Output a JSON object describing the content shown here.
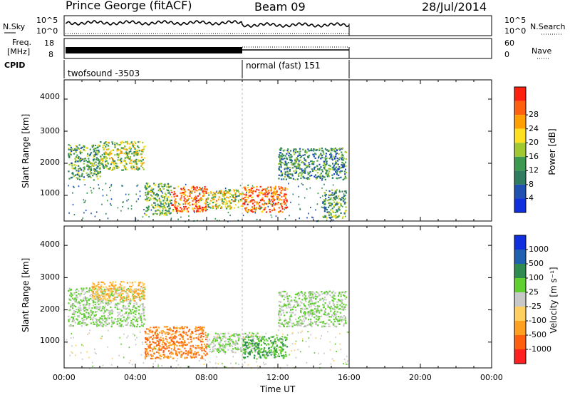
{
  "header": {
    "station": "Prince George (fitACF)",
    "beam": "Beam 09",
    "date": "28/Jul/2014"
  },
  "panels": {
    "nsky": {
      "label": "N.Sky",
      "tick_hi": "10^5",
      "tick_lo": "10^0",
      "right_label": "N.Search",
      "right_tick_hi": "10^5",
      "right_tick_lo": "10^0"
    },
    "freq": {
      "label_line1": "Freq.",
      "label_line2": "[MHz]",
      "tick_hi": "18",
      "tick_lo": "8",
      "right_label": "Nave",
      "right_tick_hi": "60",
      "right_tick_lo": "0"
    },
    "cpid": {
      "label": "CPID",
      "segments": [
        "twofsound -3503",
        "normal (fast) 151"
      ]
    }
  },
  "power_panel": {
    "ylabel": "Slant Range [km]",
    "yticks": [
      "1000",
      "2000",
      "3000",
      "4000"
    ],
    "colorbar_label": "Power [dB]",
    "colorbar_ticks": [
      "4",
      "8",
      "12",
      "16",
      "20",
      "24",
      "28"
    ],
    "colors": [
      "#1030e0",
      "#2050b0",
      "#2e7d60",
      "#3c9a50",
      "#a0c830",
      "#ffe020",
      "#ffa000",
      "#ff6010",
      "#ff2010"
    ]
  },
  "velocity_panel": {
    "ylabel": "Slant Range [km]",
    "yticks": [
      "1000",
      "2000",
      "3000",
      "4000"
    ],
    "colorbar_label": "Velocity [m s⁻¹]",
    "colorbar_ticks": [
      "1000",
      "500",
      "100",
      "25",
      "-25",
      "-100",
      "-500",
      "-1000"
    ],
    "colors": [
      "#1030e0",
      "#2060b0",
      "#2e8c50",
      "#60d030",
      "#c8c8c8",
      "#ffd060",
      "#ffa020",
      "#ff6010",
      "#ff2020"
    ]
  },
  "x_axis": {
    "label": "Time UT",
    "ticks": [
      "00:00",
      "04:00",
      "08:00",
      "12:00",
      "16:00",
      "20:00",
      "00:00"
    ]
  },
  "chart_data": {
    "type": "heatmap",
    "title": "Prince George (fitACF)",
    "xlabel": "Time UT",
    "ylabel": "Slant Range [km]",
    "xlim_hours": [
      0,
      24
    ],
    "ylim_km": [
      200,
      4600
    ],
    "data_end_hour": 16,
    "mode_change_hour": 10,
    "grid": false,
    "power_scatter_regions": [
      {
        "t0": 0.2,
        "t1": 2.0,
        "r0": 1500,
        "r1": 2600,
        "level": 12
      },
      {
        "t0": 2.0,
        "t1": 4.5,
        "r0": 1800,
        "r1": 2700,
        "level": 16
      },
      {
        "t0": 4.5,
        "t1": 6.0,
        "r0": 400,
        "r1": 1400,
        "level": 14
      },
      {
        "t0": 6.0,
        "t1": 8.0,
        "r0": 500,
        "r1": 1300,
        "level": 26
      },
      {
        "t0": 8.0,
        "t1": 10.0,
        "r0": 600,
        "r1": 1200,
        "level": 18
      },
      {
        "t0": 10.0,
        "t1": 12.5,
        "r0": 500,
        "r1": 1300,
        "level": 26
      },
      {
        "t0": 12.0,
        "t1": 15.8,
        "r0": 1500,
        "r1": 2500,
        "level": 10
      },
      {
        "t0": 14.5,
        "t1": 15.8,
        "r0": 300,
        "r1": 1200,
        "level": 12
      }
    ],
    "velocity_scatter_regions": [
      {
        "t0": 0.2,
        "t1": 4.5,
        "r0": 1500,
        "r1": 2700,
        "level": 25
      },
      {
        "t0": 1.5,
        "t1": 4.5,
        "r0": 2300,
        "r1": 2900,
        "level": -100
      },
      {
        "t0": 4.5,
        "t1": 8.0,
        "r0": 500,
        "r1": 1500,
        "level": -500
      },
      {
        "t0": 8.0,
        "t1": 11.0,
        "r0": 700,
        "r1": 1300,
        "level": 25
      },
      {
        "t0": 10.0,
        "t1": 12.5,
        "r0": 500,
        "r1": 1200,
        "level": 100
      },
      {
        "t0": 12.0,
        "t1": 15.8,
        "r0": 1500,
        "r1": 2600,
        "level": 25
      }
    ]
  }
}
